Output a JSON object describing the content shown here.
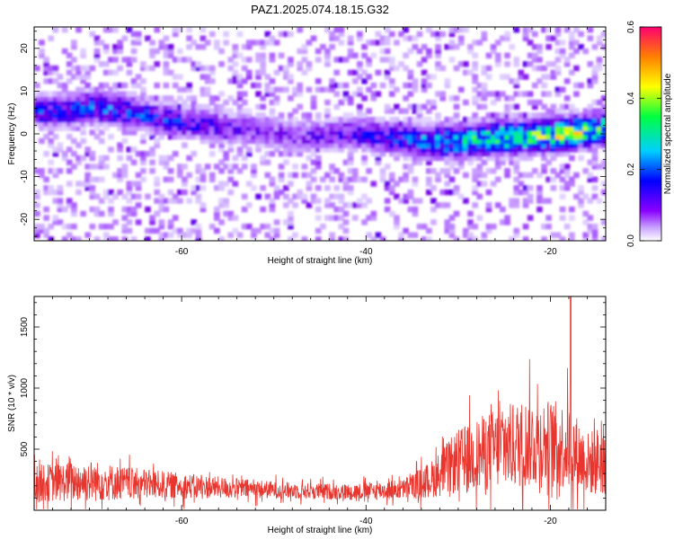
{
  "title": "PAZ1.2025.074.18.15.G32",
  "chart_data": [
    {
      "type": "heatmap",
      "xlabel": "Height of straight line (km)",
      "ylabel": "Frequency (Hz)",
      "xlim": [
        -76,
        -14
      ],
      "ylim": [
        -25,
        25
      ],
      "x_ticks": [
        -60,
        -40,
        -20
      ],
      "y_ticks": [
        -20,
        -10,
        0,
        10,
        20
      ],
      "colorbar": {
        "label": "Normalized spectral amplitude",
        "range": [
          0.0,
          0.6
        ],
        "ticks": [
          "0.0",
          "0.2",
          "0.4",
          "0.6"
        ],
        "colors": [
          "#ffffff",
          "#8a00ff",
          "#0000ff",
          "#00e5ff",
          "#00ff40",
          "#ffff00",
          "#ff8000",
          "#ff0060"
        ]
      },
      "ridge": {
        "description_points": [
          {
            "x": -74,
            "freq": 5,
            "amp": 0.15
          },
          {
            "x": -70,
            "freq": 6,
            "amp": 0.18
          },
          {
            "x": -66,
            "freq": 5,
            "amp": 0.16
          },
          {
            "x": -62,
            "freq": 3,
            "amp": 0.15
          },
          {
            "x": -58,
            "freq": 2,
            "amp": 0.12
          },
          {
            "x": -54,
            "freq": 1,
            "amp": 0.09
          },
          {
            "x": -50,
            "freq": 0,
            "amp": 0.08
          },
          {
            "x": -46,
            "freq": -1,
            "amp": 0.09
          },
          {
            "x": -42,
            "freq": 0,
            "amp": 0.11
          },
          {
            "x": -38,
            "freq": -1,
            "amp": 0.14
          },
          {
            "x": -34,
            "freq": -2,
            "amp": 0.2
          },
          {
            "x": -30,
            "freq": -2,
            "amp": 0.25
          },
          {
            "x": -26,
            "freq": -1,
            "amp": 0.3
          },
          {
            "x": -22,
            "freq": -1,
            "amp": 0.32
          },
          {
            "x": -18,
            "freq": 0,
            "amp": 0.35
          },
          {
            "x": -15,
            "freq": 1,
            "amp": 0.3
          }
        ]
      }
    },
    {
      "type": "line",
      "xlabel": "Height of straight line (km)",
      "ylabel": "SNR (10 * v/v)",
      "xlim": [
        -76,
        -14
      ],
      "ylim": [
        0,
        1750
      ],
      "x_ticks": [
        -60,
        -40,
        -20
      ],
      "y_ticks": [
        500,
        1000,
        1500
      ],
      "line_color": "#e8352e",
      "envelope": [
        {
          "x": -76,
          "base": 220,
          "amp": 200
        },
        {
          "x": -70,
          "base": 240,
          "amp": 230
        },
        {
          "x": -66,
          "base": 220,
          "amp": 180
        },
        {
          "x": -60,
          "base": 200,
          "amp": 140
        },
        {
          "x": -54,
          "base": 180,
          "amp": 110
        },
        {
          "x": -48,
          "base": 160,
          "amp": 90
        },
        {
          "x": -42,
          "base": 150,
          "amp": 90
        },
        {
          "x": -36,
          "base": 170,
          "amp": 110
        },
        {
          "x": -33,
          "base": 250,
          "amp": 200
        },
        {
          "x": -30,
          "base": 400,
          "amp": 350
        },
        {
          "x": -26,
          "base": 500,
          "amp": 450
        },
        {
          "x": -22,
          "base": 560,
          "amp": 500
        },
        {
          "x": -18,
          "base": 520,
          "amp": 480
        },
        {
          "x": -16,
          "base": 380,
          "amp": 350
        },
        {
          "x": -14,
          "base": 420,
          "amp": 400
        }
      ],
      "peak": {
        "x": -17.8,
        "y": 1750
      }
    }
  ]
}
